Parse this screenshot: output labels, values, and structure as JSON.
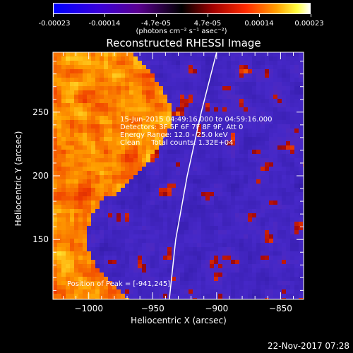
{
  "colorbar": {
    "tick_labels": [
      "-0.00023",
      "-0.00014",
      "-4.7e-05",
      "4.7e-05",
      "0.00014",
      "0.00023"
    ],
    "units_label": "(photons cm⁻² s⁻¹ asec⁻²)"
  },
  "chart_data": {
    "type": "heatmap",
    "title": "Reconstructed RHESSI Image",
    "xlabel": "Heliocentric X (arcsec)",
    "ylabel": "Heliocentric Y (arcsec)",
    "xlim": [
      -1028,
      -832
    ],
    "ylim": [
      103,
      297
    ],
    "x_ticks": [
      -1000,
      -950,
      -900,
      -850
    ],
    "y_ticks": [
      150,
      200,
      250
    ],
    "colorscale_range": [
      -0.00023,
      0.00023
    ],
    "peak": [
      -941,
      245
    ],
    "limb_curve": [
      [
        -937,
        103
      ],
      [
        -932,
        150
      ],
      [
        -923,
        200
      ],
      [
        -912,
        250
      ],
      [
        -900,
        297
      ]
    ]
  },
  "info": {
    "line1": "15-Jun-2015 04:49:16.000 to 04:59:16.000",
    "line2": "Detectors: 3F 5F 6F 7F 8F 9F, Att 0",
    "line3": "Energy Range: 12.0 - 25.0 keV",
    "line4": "Clean     Total counts: 1.32E+04",
    "peak": "Position of Peak = [-941,245]"
  },
  "footer": {
    "date": "22-Nov-2017 07:28"
  }
}
